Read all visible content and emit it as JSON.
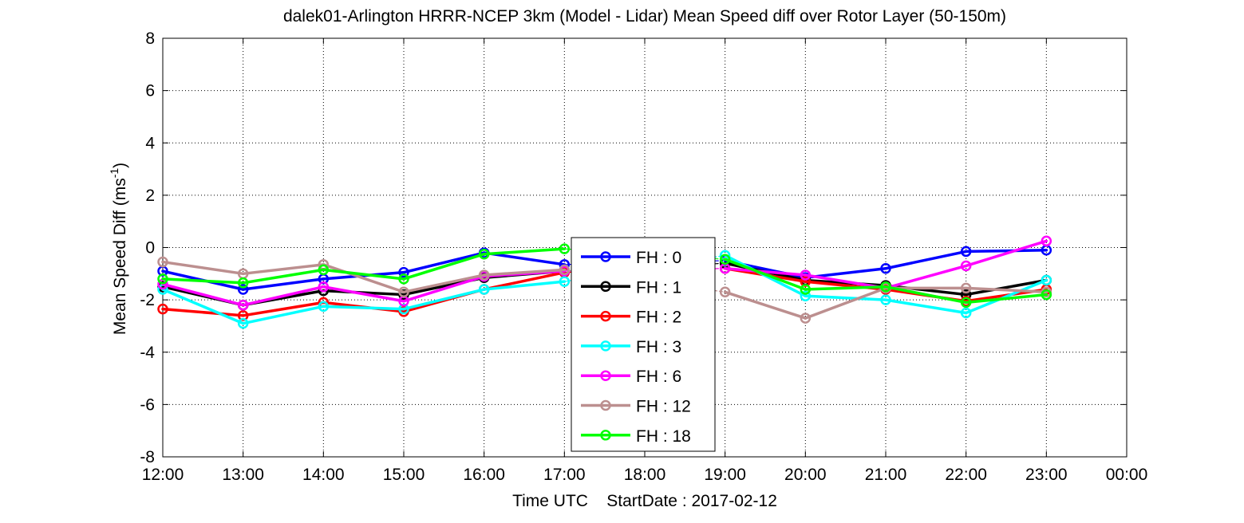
{
  "chart_data": {
    "type": "line",
    "title": "dalek01-Arlington HRRR-NCEP 3km (Model - Lidar) Mean Speed diff over Rotor Layer (50-150m)",
    "xlabel": "Time UTC    StartDate : 2017-02-12",
    "ylabel_main": "Mean Speed Diff (ms",
    "ylabel_sup": "-1",
    "ylabel_close": ")",
    "x_ticks": [
      "12:00",
      "13:00",
      "14:00",
      "15:00",
      "16:00",
      "17:00",
      "18:00",
      "19:00",
      "20:00",
      "21:00",
      "22:00",
      "23:00",
      "00:00"
    ],
    "y_ticks": [
      "8",
      "6",
      "4",
      "2",
      "0",
      "-2",
      "-4",
      "-6",
      "-8"
    ],
    "xlim": [
      12,
      24
    ],
    "ylim": [
      -8,
      8
    ],
    "grid": true,
    "legend_position": "center",
    "series": [
      {
        "name": "FH : 0",
        "color": "#0000ff",
        "x": [
          12,
          13,
          14,
          15,
          16,
          17,
          19,
          20,
          21,
          22,
          23
        ],
        "y": [
          -0.9,
          -1.6,
          -1.2,
          -0.95,
          -0.2,
          -0.65,
          -0.5,
          -1.15,
          -0.8,
          -0.15,
          -0.1
        ]
      },
      {
        "name": "FH : 1",
        "color": "#000000",
        "x": [
          12,
          13,
          14,
          15,
          16,
          17,
          19,
          20,
          21,
          22,
          23
        ],
        "y": [
          -1.5,
          -2.2,
          -1.65,
          -1.8,
          -1.15,
          -0.9,
          -0.6,
          -1.25,
          -1.45,
          -1.8,
          -1.25
        ]
      },
      {
        "name": "FH : 2",
        "color": "#ff0000",
        "x": [
          12,
          13,
          14,
          15,
          16,
          17,
          19,
          20,
          21,
          22,
          23
        ],
        "y": [
          -2.35,
          -2.6,
          -2.1,
          -2.45,
          -1.6,
          -0.95,
          -0.8,
          -1.3,
          -1.6,
          -2.05,
          -1.6
        ]
      },
      {
        "name": "FH : 3",
        "color": "#00ffff",
        "x": [
          12,
          13,
          14,
          15,
          16,
          17,
          19,
          20,
          21,
          22,
          23
        ],
        "y": [
          -1.6,
          -2.9,
          -2.25,
          -2.35,
          -1.6,
          -1.3,
          -0.3,
          -1.85,
          -2.0,
          -2.5,
          -1.25
        ]
      },
      {
        "name": "FH : 6",
        "color": "#ff00ff",
        "x": [
          12,
          13,
          14,
          15,
          16,
          17,
          19,
          20,
          21,
          22,
          23
        ],
        "y": [
          -1.4,
          -2.2,
          -1.5,
          -2.05,
          -1.1,
          -0.9,
          -0.8,
          -1.05,
          -1.55,
          -0.7,
          0.25
        ]
      },
      {
        "name": "FH : 12",
        "color": "#bc8f8f",
        "x": [
          12,
          13,
          14,
          15,
          16,
          17,
          19,
          20,
          21,
          22,
          23
        ],
        "y": [
          -0.55,
          -1.0,
          -0.65,
          -1.7,
          -1.05,
          -0.85,
          -1.7,
          -2.7,
          -1.55,
          -1.55,
          -1.7
        ]
      },
      {
        "name": "FH : 18",
        "color": "#00ff00",
        "x": [
          12,
          13,
          14,
          15,
          16,
          17,
          19,
          20,
          21,
          22,
          23
        ],
        "y": [
          -1.2,
          -1.35,
          -0.85,
          -1.2,
          -0.25,
          -0.05,
          -0.45,
          -1.6,
          -1.5,
          -2.1,
          -1.8
        ]
      }
    ]
  }
}
